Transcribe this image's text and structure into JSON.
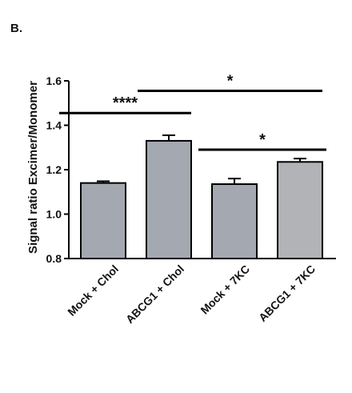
{
  "panel_label": "B.",
  "chart_data": {
    "type": "bar",
    "categories": [
      "Mock + Chol",
      "ABCG1 + Chol",
      "Mock + 7KC",
      "ABCG1 + 7KC"
    ],
    "values": [
      1.14,
      1.33,
      1.135,
      1.235
    ],
    "errors": [
      0.008,
      0.025,
      0.025,
      0.015
    ],
    "bar_colors": [
      "#a3a8b1",
      "#a3a8b1",
      "#a3a8b1",
      "#b1b3b7"
    ],
    "ylabel": "Signal ratio Excimer/Monomer",
    "ylim": [
      0.8,
      1.6
    ],
    "yticks": [
      "0.8",
      "1.0",
      "1.2",
      "1.4",
      "1.6"
    ],
    "significance": [
      {
        "from": 0,
        "to": 1,
        "label": "****",
        "y": 1.455
      },
      {
        "from": 1,
        "to": 3,
        "label": "*",
        "y": 1.555
      },
      {
        "from": 2,
        "to": 3,
        "label": "*",
        "y": 1.29
      }
    ]
  }
}
